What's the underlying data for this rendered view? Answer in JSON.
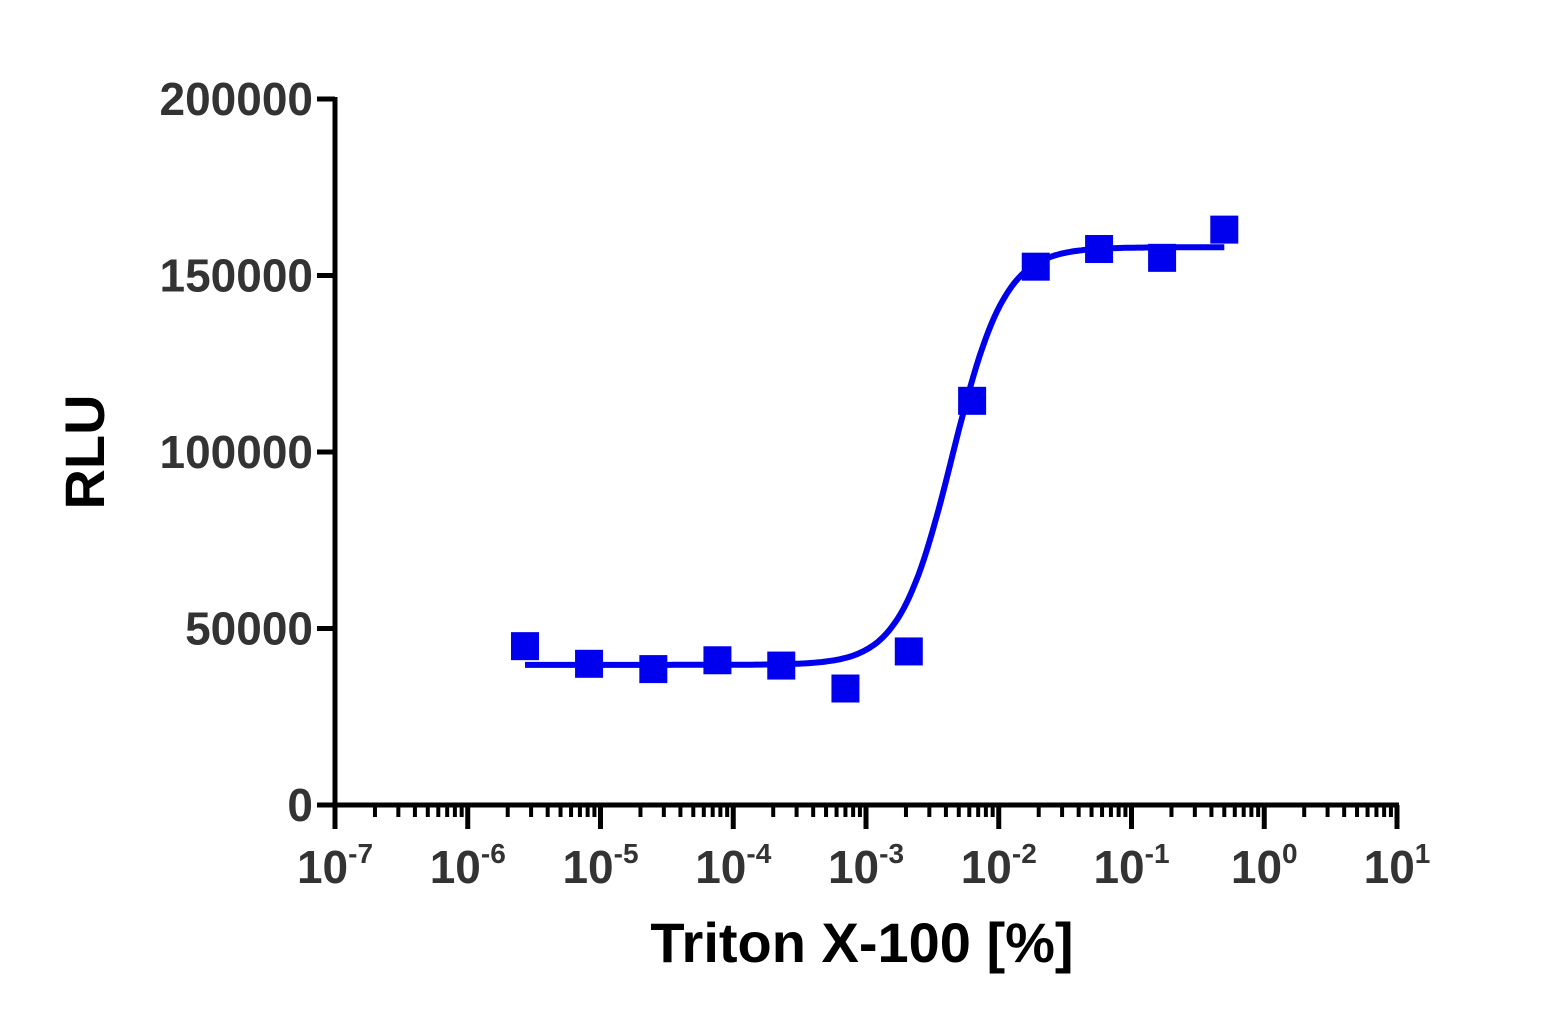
{
  "chart_data": {
    "type": "scatter",
    "title": "",
    "xlabel": "Triton X-100 [%]",
    "ylabel": "RLU",
    "x_scale": "log",
    "xlim": [
      1e-07,
      10
    ],
    "ylim": [
      0,
      200000
    ],
    "grid": false,
    "x_ticks": [
      {
        "base": "10",
        "exp": "-7",
        "value": 1e-07
      },
      {
        "base": "10",
        "exp": "-6",
        "value": 1e-06
      },
      {
        "base": "10",
        "exp": "-5",
        "value": 1e-05
      },
      {
        "base": "10",
        "exp": "-4",
        "value": 0.0001
      },
      {
        "base": "10",
        "exp": "-3",
        "value": 0.001
      },
      {
        "base": "10",
        "exp": "-2",
        "value": 0.01
      },
      {
        "base": "10",
        "exp": "-1",
        "value": 0.1
      },
      {
        "base": "10",
        "exp": "0",
        "value": 1
      },
      {
        "base": "10",
        "exp": "1",
        "value": 10
      }
    ],
    "y_ticks": [
      {
        "label": "0",
        "value": 0
      },
      {
        "label": "50000",
        "value": 50000
      },
      {
        "label": "100000",
        "value": 100000
      },
      {
        "label": "150000",
        "value": 150000
      },
      {
        "label": "200000",
        "value": 200000
      }
    ],
    "series": [
      {
        "color": "#0000ee",
        "marker": "square",
        "points": [
          {
            "x": 2.7e-06,
            "y": 45000
          },
          {
            "x": 8.2e-06,
            "y": 40000
          },
          {
            "x": 2.5e-05,
            "y": 38500
          },
          {
            "x": 7.6e-05,
            "y": 41000
          },
          {
            "x": 0.00023,
            "y": 39500
          },
          {
            "x": 0.0007,
            "y": 33000
          },
          {
            "x": 0.0021,
            "y": 43500
          },
          {
            "x": 0.0063,
            "y": 114500
          },
          {
            "x": 0.019,
            "y": 152500
          },
          {
            "x": 0.057,
            "y": 157500
          },
          {
            "x": 0.17,
            "y": 155000
          },
          {
            "x": 0.5,
            "y": 163000
          }
        ],
        "fit": {
          "model": "sigmoidal dose-response",
          "bottom": 39700,
          "top": 158000,
          "log_ec50": -2.35,
          "hill_slope": 2.2
        }
      }
    ]
  }
}
